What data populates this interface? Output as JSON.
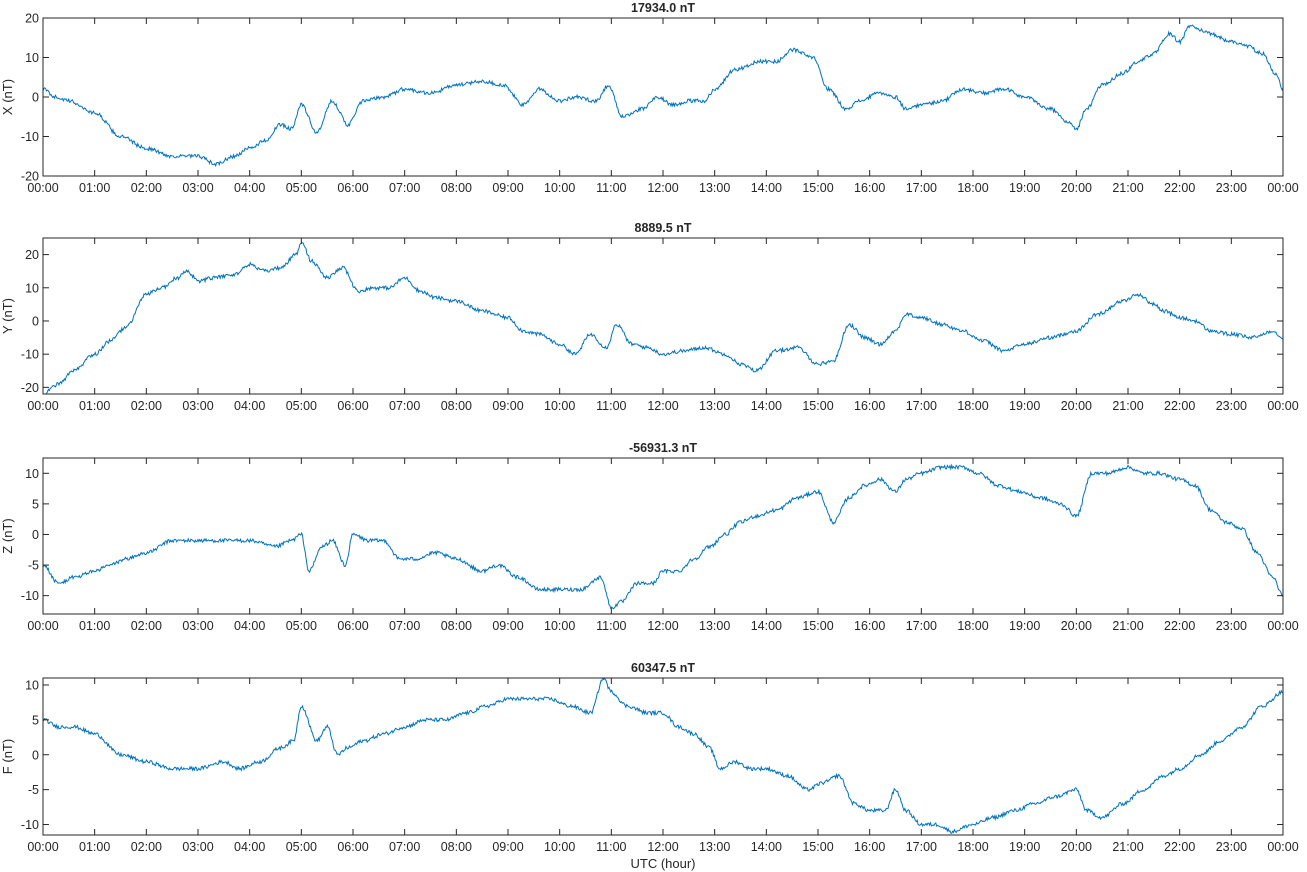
{
  "figure": {
    "xlabel": "UTC (hour)",
    "line_color": "#0072bd",
    "axis_color": "#262626"
  },
  "chart_data": [
    {
      "type": "line",
      "title": "17934.0 nT",
      "ylabel": "X (nT)",
      "xlabel": "",
      "ylim": [
        -20,
        20
      ],
      "yticks": [
        -20,
        -10,
        0,
        10,
        20
      ],
      "xticks": [
        "00:00",
        "01:00",
        "02:00",
        "03:00",
        "04:00",
        "05:00",
        "06:00",
        "07:00",
        "08:00",
        "09:00",
        "10:00",
        "11:00",
        "12:00",
        "13:00",
        "14:00",
        "15:00",
        "16:00",
        "17:00",
        "18:00",
        "19:00",
        "20:00",
        "21:00",
        "22:00",
        "23:00",
        "00:00"
      ],
      "grid": false,
      "series": [
        {
          "x": [
            0,
            0.25,
            0.5,
            1.0,
            1.5,
            2.0,
            2.5,
            3.0,
            3.35,
            3.7,
            4.0,
            4.3,
            4.6,
            4.8,
            5.0,
            5.3,
            5.6,
            5.9,
            6.2,
            6.6,
            7.0,
            7.5,
            8.0,
            8.5,
            8.9,
            9.3,
            9.6,
            10.0,
            10.3,
            10.7,
            10.95,
            11.2,
            11.6,
            11.9,
            12.2,
            12.5,
            12.8,
            13.0,
            13.4,
            13.9,
            14.2,
            14.5,
            14.9,
            15.2,
            15.55,
            15.8,
            16.2,
            16.5,
            16.7,
            17.0,
            17.4,
            17.8,
            18.2,
            18.6,
            19.0,
            19.5,
            19.8,
            20.0,
            20.2,
            20.5,
            20.9,
            21.2,
            21.5,
            21.8,
            22.0,
            22.2,
            22.6,
            23.0,
            23.3,
            23.6,
            23.85,
            24.0
          ],
          "values": [
            2,
            0,
            -1,
            -4,
            -10,
            -13,
            -15,
            -15,
            -17,
            -15,
            -13,
            -11,
            -7,
            -8,
            -2,
            -9,
            -1,
            -7,
            -1,
            0,
            2,
            1,
            3,
            4,
            3,
            -2,
            2,
            -1,
            0,
            -1,
            3,
            -5,
            -3,
            0,
            -2,
            -1,
            -1,
            2,
            7,
            9,
            9,
            12,
            10,
            2,
            -3,
            -1,
            1,
            0,
            -3,
            -2,
            -1,
            2,
            1,
            2,
            0,
            -3,
            -6,
            -8,
            -3,
            3,
            6,
            9,
            11,
            16,
            14,
            18,
            16,
            14,
            13,
            11,
            6,
            2
          ]
        }
      ]
    },
    {
      "type": "line",
      "title": "8889.5 nT",
      "ylabel": "Y (nT)",
      "xlabel": "",
      "ylim": [
        -22,
        25
      ],
      "yticks": [
        -20,
        -10,
        0,
        10,
        20
      ],
      "xticks": [
        "00:00",
        "01:00",
        "02:00",
        "03:00",
        "04:00",
        "05:00",
        "06:00",
        "07:00",
        "08:00",
        "09:00",
        "10:00",
        "11:00",
        "12:00",
        "13:00",
        "14:00",
        "15:00",
        "16:00",
        "17:00",
        "18:00",
        "19:00",
        "20:00",
        "21:00",
        "22:00",
        "23:00",
        "00:00"
      ],
      "grid": false,
      "series": [
        {
          "x": [
            0,
            0.3,
            0.6,
            1.0,
            1.3,
            1.6,
            2.0,
            2.3,
            2.6,
            2.8,
            3.0,
            3.3,
            3.7,
            4.0,
            4.3,
            4.6,
            4.9,
            5.0,
            5.2,
            5.5,
            5.8,
            6.1,
            6.4,
            6.7,
            7.0,
            7.3,
            7.6,
            8.0,
            8.5,
            9.0,
            9.3,
            9.6,
            10.0,
            10.3,
            10.6,
            10.9,
            11.1,
            11.4,
            11.7,
            12.0,
            12.4,
            12.8,
            13.2,
            13.5,
            13.8,
            14.2,
            14.6,
            15.0,
            15.3,
            15.6,
            15.9,
            16.2,
            16.5,
            16.7,
            17.0,
            17.4,
            17.8,
            18.2,
            18.6,
            19.0,
            19.5,
            20.0,
            20.4,
            20.9,
            21.2,
            21.5,
            21.7,
            22.0,
            22.3,
            22.6,
            23.0,
            23.4,
            23.8,
            24.0
          ],
          "values": [
            -22,
            -19,
            -15,
            -10,
            -6,
            -2,
            8,
            10,
            13,
            15,
            12,
            13,
            14,
            17,
            15,
            16,
            20,
            24,
            18,
            13,
            16,
            9,
            10,
            10,
            13,
            9,
            7,
            6,
            3,
            1,
            -3,
            -4,
            -7,
            -10,
            -4,
            -8,
            -1,
            -7,
            -8,
            -10,
            -9,
            -8,
            -10,
            -13,
            -15,
            -9,
            -8,
            -13,
            -12,
            -1,
            -5,
            -7,
            -3,
            2,
            1,
            -1,
            -3,
            -6,
            -9,
            -7,
            -5,
            -3,
            2,
            6,
            8,
            5,
            3,
            1,
            0,
            -3,
            -4,
            -5,
            -3,
            -5
          ]
        }
      ]
    },
    {
      "type": "line",
      "title": "-56931.3 nT",
      "ylabel": "Z (nT)",
      "xlabel": "",
      "ylim": [
        -13,
        12.5
      ],
      "yticks": [
        -10,
        -5,
        0,
        5,
        10
      ],
      "xticks": [
        "00:00",
        "01:00",
        "02:00",
        "03:00",
        "04:00",
        "05:00",
        "06:00",
        "07:00",
        "08:00",
        "09:00",
        "10:00",
        "11:00",
        "12:00",
        "13:00",
        "14:00",
        "15:00",
        "16:00",
        "17:00",
        "18:00",
        "19:00",
        "20:00",
        "21:00",
        "22:00",
        "23:00",
        "00:00"
      ],
      "grid": false,
      "series": [
        {
          "x": [
            0,
            0.3,
            0.6,
            1.0,
            1.3,
            1.6,
            2.0,
            2.5,
            3.0,
            3.5,
            4.0,
            4.5,
            4.8,
            5.0,
            5.15,
            5.4,
            5.6,
            5.85,
            6.0,
            6.3,
            6.6,
            6.9,
            7.2,
            7.6,
            8.0,
            8.5,
            8.8,
            9.2,
            9.6,
            10.0,
            10.4,
            10.8,
            11.0,
            11.2,
            11.5,
            11.8,
            12.0,
            12.3,
            12.6,
            12.9,
            13.2,
            13.5,
            13.8,
            14.2,
            14.6,
            15.0,
            15.3,
            15.6,
            15.9,
            16.2,
            16.5,
            16.7,
            17.0,
            17.4,
            17.8,
            18.1,
            18.5,
            18.9,
            19.3,
            19.7,
            20.0,
            20.3,
            20.6,
            21.0,
            21.3,
            21.6,
            22.0,
            22.3,
            22.6,
            22.9,
            23.2,
            23.5,
            23.8,
            24.0
          ],
          "values": [
            -5,
            -8,
            -7,
            -6,
            -5,
            -4,
            -3,
            -1,
            -1,
            -1,
            -1,
            -2,
            -1,
            0,
            -6,
            -2,
            -1,
            -5,
            0,
            -1,
            -1,
            -4,
            -4,
            -3,
            -4,
            -6,
            -5,
            -7,
            -9,
            -9,
            -9,
            -7,
            -12,
            -11,
            -8,
            -8,
            -6,
            -6,
            -4,
            -2,
            0,
            2,
            3,
            4,
            6,
            7,
            2,
            6,
            8,
            9,
            7,
            9,
            10,
            11,
            11,
            10,
            8,
            7,
            6,
            5,
            3,
            10,
            10,
            11,
            10,
            10,
            9,
            8,
            4,
            2,
            1,
            -3,
            -7,
            -10
          ]
        }
      ]
    },
    {
      "type": "line",
      "title": "60347.5 nT",
      "ylabel": "F (nT)",
      "xlabel": "UTC (hour)",
      "ylim": [
        -11.5,
        11
      ],
      "yticks": [
        -10,
        -5,
        0,
        5,
        10
      ],
      "xticks": [
        "00:00",
        "01:00",
        "02:00",
        "03:00",
        "04:00",
        "05:00",
        "06:00",
        "07:00",
        "08:00",
        "09:00",
        "10:00",
        "11:00",
        "12:00",
        "13:00",
        "14:00",
        "15:00",
        "16:00",
        "17:00",
        "18:00",
        "19:00",
        "20:00",
        "21:00",
        "22:00",
        "23:00",
        "00:00"
      ],
      "grid": false,
      "series": [
        {
          "x": [
            0,
            0.3,
            0.6,
            1.0,
            1.5,
            2.0,
            2.5,
            3.0,
            3.5,
            3.8,
            4.2,
            4.6,
            4.85,
            5.0,
            5.3,
            5.5,
            5.7,
            5.9,
            6.2,
            6.6,
            7.0,
            7.4,
            7.8,
            8.2,
            8.6,
            9.0,
            9.4,
            9.8,
            10.2,
            10.6,
            10.85,
            11.0,
            11.3,
            11.7,
            12.0,
            12.3,
            12.6,
            12.9,
            13.1,
            13.4,
            13.7,
            14.0,
            14.4,
            14.8,
            15.1,
            15.4,
            15.7,
            16.0,
            16.3,
            16.5,
            16.7,
            17.0,
            17.3,
            17.6,
            18.0,
            18.4,
            18.8,
            19.2,
            19.6,
            20.0,
            20.2,
            20.5,
            20.9,
            21.3,
            21.7,
            22.0,
            22.4,
            22.8,
            23.2,
            23.6,
            24.0
          ],
          "values": [
            5,
            4,
            4,
            3,
            0,
            -1,
            -2,
            -2,
            -1,
            -2,
            -1,
            1,
            2,
            7,
            2,
            4,
            0,
            1,
            2,
            3,
            4,
            5,
            5,
            6,
            7,
            8,
            8,
            8,
            7,
            6,
            11,
            9,
            7,
            6,
            6,
            4,
            3,
            1,
            -2,
            -1,
            -2,
            -2,
            -3,
            -5,
            -4,
            -3,
            -7,
            -8,
            -8,
            -5,
            -8,
            -10,
            -10,
            -11,
            -10,
            -9,
            -8,
            -7,
            -6,
            -5,
            -8,
            -9,
            -7,
            -5,
            -3,
            -2,
            0,
            2,
            4,
            7,
            9
          ]
        }
      ]
    }
  ]
}
